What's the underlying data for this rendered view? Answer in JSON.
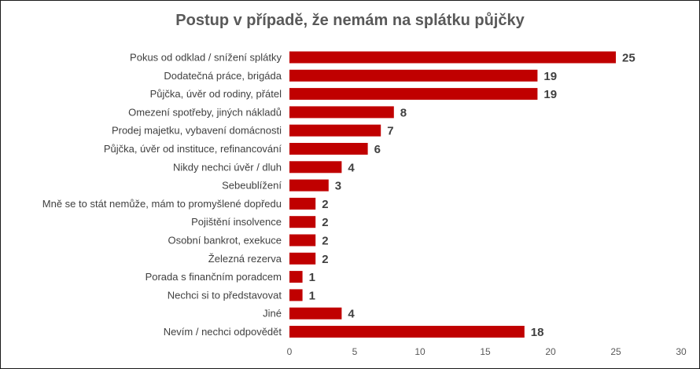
{
  "chart_data": {
    "type": "bar",
    "orientation": "horizontal",
    "title": "Postup v případě, že nemám na splátku půjčky",
    "xlabel": "",
    "ylabel": "",
    "xlim": [
      0,
      30
    ],
    "x_ticks": [
      0,
      5,
      10,
      15,
      20,
      25,
      30
    ],
    "grid": false,
    "legend": "none",
    "bar_color": "#c00000",
    "categories": [
      "Pokus od odklad / snížení splátky",
      "Dodatečná práce, brigáda",
      "Půjčka, úvěr od rodiny, přátel",
      "Omezení spotřeby, jiných nákladů",
      "Prodej majetku, vybavení domácnosti",
      "Půjčka, úvěr od instituce, refinancování",
      "Nikdy nechci úvěr / dluh",
      "Sebeublížení",
      "Mně se to stát nemůže, mám to promyšlené dopředu",
      "Pojištění insolvence",
      "Osobní bankrot, exekuce",
      "Železná rezerva",
      "Porada s finančním poradcem",
      "Nechci si to představovat",
      "Jiné",
      "Nevím / nechci odpovědět"
    ],
    "values": [
      25,
      19,
      19,
      8,
      7,
      6,
      4,
      3,
      2,
      2,
      2,
      2,
      1,
      1,
      4,
      18
    ]
  }
}
